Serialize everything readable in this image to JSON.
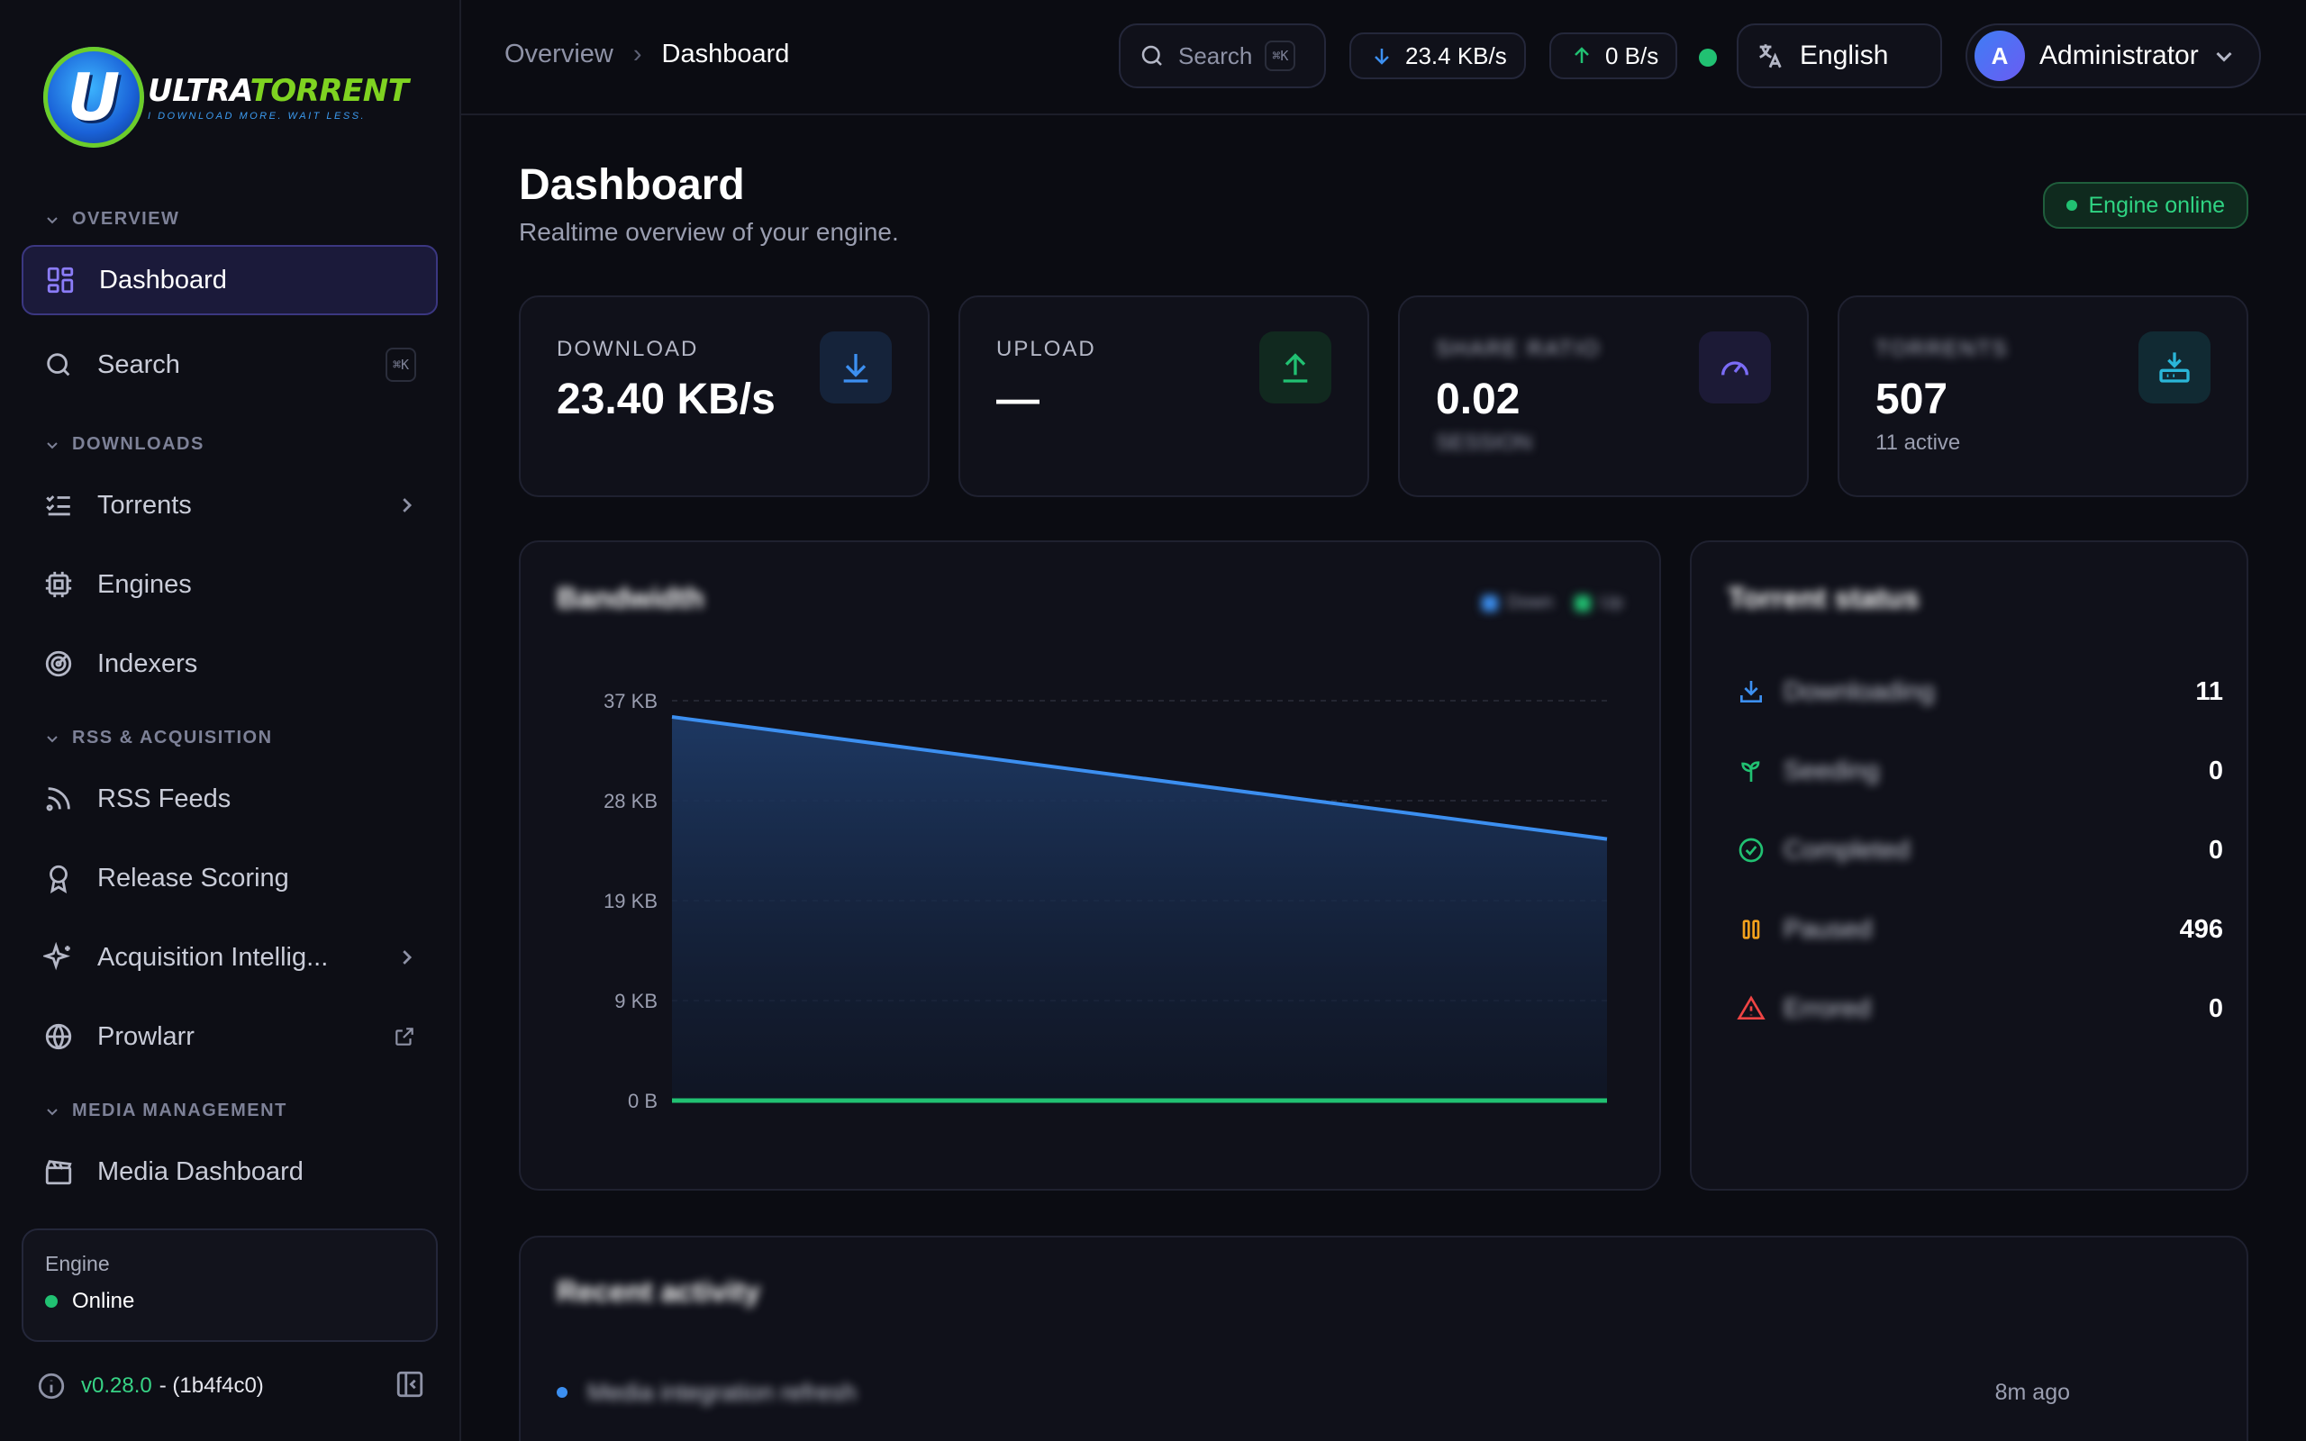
{
  "brand": {
    "name_a": "ULTRA",
    "name_b": "TORRENT",
    "tagline": "I DOWNLOAD MORE. WAIT LESS.",
    "badge_letter": "U"
  },
  "sidebar": {
    "sections": {
      "overview": "OVERVIEW",
      "downloads": "DOWNLOADS",
      "rss": "RSS & ACQUISITION",
      "media": "MEDIA MANAGEMENT"
    },
    "items": [
      {
        "label": "Dashboard",
        "icon": "dashboard-grid-icon",
        "active": true
      },
      {
        "label": "Search",
        "icon": "search-icon",
        "shortcut": "⌘K"
      },
      {
        "label": "Torrents",
        "icon": "list-check-icon"
      },
      {
        "label": "Engines",
        "icon": "cpu-icon"
      },
      {
        "label": "Indexers",
        "icon": "radar-icon"
      },
      {
        "label": "RSS Feeds",
        "icon": "rss-icon"
      },
      {
        "label": "Release Scoring",
        "icon": "award-icon"
      },
      {
        "label": "Acquisition Intellig...",
        "icon": "sparkles-icon"
      },
      {
        "label": "Prowlarr",
        "icon": "globe-icon"
      },
      {
        "label": "Media Dashboard",
        "icon": "clapperboard-icon"
      }
    ],
    "engine_card": {
      "title": "Engine",
      "status": "Online"
    },
    "version": {
      "number": "v0.28.0",
      "hash": "- (1b4f4c0)"
    }
  },
  "topbar": {
    "breadcrumb": [
      "Overview",
      "Dashboard"
    ],
    "search_label": "Search",
    "search_shortcut": "⌘K",
    "download_speed": "23.4 KB/s",
    "upload_speed": "0 B/s",
    "language": "English",
    "user": {
      "initial": "A",
      "name": "Administrator"
    }
  },
  "page": {
    "title": "Dashboard",
    "subtitle": "Realtime overview of your engine.",
    "engine_badge": "Engine online"
  },
  "stats": [
    {
      "label": "DOWNLOAD",
      "value": "23.40 KB/s",
      "sub": "",
      "icon": "download-icon",
      "color": "#3c8ff0"
    },
    {
      "label": "UPLOAD",
      "value": "—",
      "sub": "",
      "icon": "upload-icon",
      "color": "#21c172"
    },
    {
      "label": "SHARE RATIO",
      "value": "0.02",
      "sub": "SESSION",
      "icon": "gauge-icon",
      "color": "#7b6cf6"
    },
    {
      "label": "TORRENTS",
      "value": "507",
      "sub": "11 active",
      "icon": "inbox-download-icon",
      "color": "#2ab6d8"
    }
  ],
  "bandwidth": {
    "title": "Bandwidth",
    "subtitle": "",
    "legend": [
      "Down",
      "Up"
    ]
  },
  "chart_data": {
    "type": "area",
    "x": [
      "",
      ""
    ],
    "series": [
      {
        "name": "Down",
        "values": [
          35.5,
          24.2
        ],
        "color": "#3c8ff0"
      },
      {
        "name": "Up",
        "values": [
          0,
          0
        ],
        "color": "#21c172"
      }
    ],
    "yticks": [
      "37 KB",
      "28 KB",
      "19 KB",
      "9 KB",
      "0 B"
    ],
    "ylim": [
      0,
      37
    ],
    "grid": true,
    "legend_position": "top-right"
  },
  "torrent_status": {
    "title": "Torrent status",
    "rows": [
      {
        "name": "Downloading",
        "count": "11",
        "icon": "download-tray-icon",
        "color": "#3c8ff0"
      },
      {
        "name": "Seeding",
        "count": "0",
        "icon": "sprout-icon",
        "color": "#21c172"
      },
      {
        "name": "Completed",
        "count": "0",
        "icon": "check-circle-icon",
        "color": "#21c172"
      },
      {
        "name": "Paused",
        "count": "496",
        "icon": "pause-icon",
        "color": "#f2a11d"
      },
      {
        "name": "Errored",
        "count": "0",
        "icon": "alert-triangle-icon",
        "color": "#ef4444"
      }
    ]
  },
  "activity": {
    "title": "Recent activity",
    "items": [
      {
        "text": "Media integration refresh",
        "sub": "",
        "time": "8m ago"
      }
    ]
  }
}
